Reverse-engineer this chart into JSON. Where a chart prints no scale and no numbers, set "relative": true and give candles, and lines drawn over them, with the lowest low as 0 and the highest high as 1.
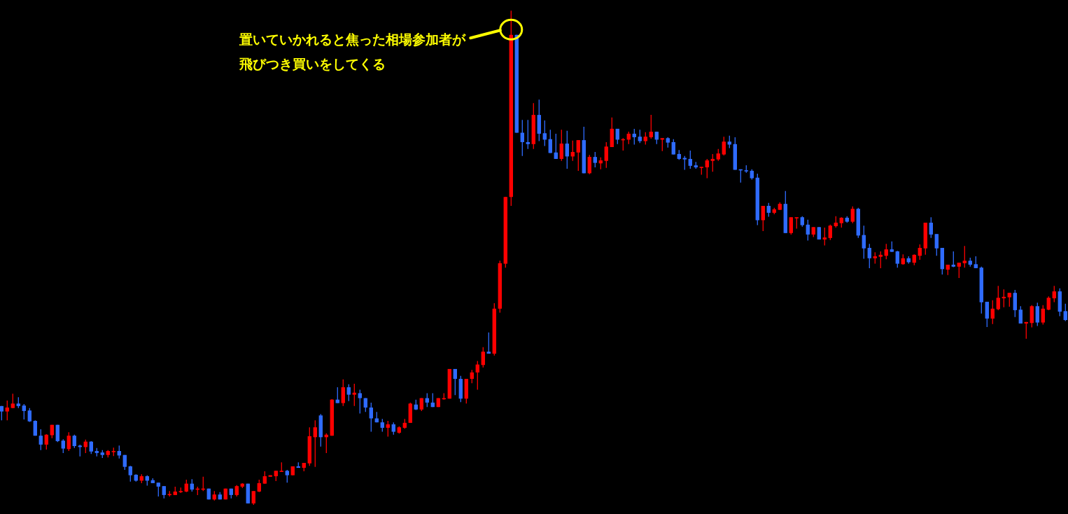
{
  "chart_data": {
    "type": "candlestick",
    "relative": true,
    "categories": [
      null,
      null,
      null,
      null,
      null,
      null,
      null,
      null,
      null,
      null,
      null,
      null,
      null,
      null,
      null,
      null,
      null,
      null,
      null,
      null,
      null,
      null,
      null,
      null,
      null,
      null,
      null,
      null,
      null,
      null,
      null,
      null,
      null,
      null,
      null,
      null,
      null,
      null,
      null,
      null,
      null,
      null,
      null,
      null,
      null,
      null,
      null,
      null,
      null,
      null,
      null,
      null,
      null,
      null,
      null,
      null,
      null,
      null,
      null,
      null,
      null,
      null,
      null,
      null,
      null,
      null,
      null,
      null,
      null,
      null,
      null,
      null,
      null,
      null,
      null,
      null,
      null,
      null,
      null,
      null,
      null,
      null,
      null,
      null,
      null,
      null,
      null,
      null,
      null,
      null,
      null,
      null,
      null,
      null,
      null,
      null,
      null,
      null,
      null,
      null,
      null,
      null,
      null,
      null,
      null,
      null,
      null,
      null,
      null,
      null,
      null,
      null,
      null,
      null,
      null,
      null,
      null,
      null,
      null,
      null,
      null,
      null,
      null,
      null,
      null,
      null,
      null,
      null,
      null,
      null,
      null,
      null,
      null,
      null,
      null,
      null,
      null,
      null,
      null,
      null,
      null,
      null,
      null,
      null,
      null,
      null,
      null,
      null,
      null,
      null,
      null,
      null,
      null,
      null,
      null,
      null,
      null,
      null,
      null,
      null,
      null,
      null,
      null,
      null,
      null,
      null,
      null,
      null,
      null,
      null,
      null,
      null,
      null,
      null,
      null,
      null,
      null,
      null,
      null,
      null,
      null,
      null,
      null,
      null,
      null,
      null,
      null,
      null,
      null,
      null,
      null
    ],
    "ohlc": [
      [
        0.2,
        0.2,
        0.171,
        0.189
      ],
      [
        0.189,
        0.211,
        0.171,
        0.197
      ],
      [
        0.196,
        0.225,
        0.196,
        0.205
      ],
      [
        0.205,
        0.218,
        0.196,
        0.2
      ],
      [
        0.201,
        0.204,
        0.173,
        0.19
      ],
      [
        0.191,
        0.196,
        0.168,
        0.169
      ],
      [
        0.17,
        0.171,
        0.14,
        0.14
      ],
      [
        0.14,
        0.153,
        0.111,
        0.122
      ],
      [
        0.122,
        0.143,
        0.112,
        0.142
      ],
      [
        0.141,
        0.162,
        0.135,
        0.162
      ],
      [
        0.162,
        0.162,
        0.127,
        0.129
      ],
      [
        0.13,
        0.133,
        0.105,
        0.114
      ],
      [
        0.113,
        0.147,
        0.109,
        0.14
      ],
      [
        0.14,
        0.142,
        0.115,
        0.119
      ],
      [
        0.12,
        0.122,
        0.098,
        0.117
      ],
      [
        0.117,
        0.132,
        0.105,
        0.128
      ],
      [
        0.128,
        0.129,
        0.103,
        0.108
      ],
      [
        0.109,
        0.115,
        0.098,
        0.105
      ],
      [
        0.106,
        0.111,
        0.095,
        0.101
      ],
      [
        0.101,
        0.111,
        0.096,
        0.109
      ],
      [
        0.108,
        0.116,
        0.099,
        0.109
      ],
      [
        0.109,
        0.12,
        0.094,
        0.1
      ],
      [
        0.101,
        0.101,
        0.071,
        0.077
      ],
      [
        0.078,
        0.079,
        0.047,
        0.06
      ],
      [
        0.061,
        0.062,
        0.047,
        0.049
      ],
      [
        0.049,
        0.062,
        0.044,
        0.058
      ],
      [
        0.058,
        0.06,
        0.039,
        0.049
      ],
      [
        0.05,
        0.054,
        0.044,
        0.044
      ],
      [
        0.045,
        0.045,
        0.017,
        0.037
      ],
      [
        0.038,
        0.038,
        0.013,
        0.02
      ],
      [
        0.02,
        0.028,
        0.017,
        0.022
      ],
      [
        0.02,
        0.037,
        0.02,
        0.027
      ],
      [
        0.026,
        0.035,
        0.024,
        0.028
      ],
      [
        0.027,
        0.051,
        0.026,
        0.043
      ],
      [
        0.043,
        0.052,
        0.027,
        0.031
      ],
      [
        0.031,
        0.037,
        0.02,
        0.033
      ],
      [
        0.031,
        0.057,
        0.028,
        0.033
      ],
      [
        0.033,
        0.033,
        0.011,
        0.011
      ],
      [
        0.011,
        0.028,
        0.009,
        0.021
      ],
      [
        0.021,
        0.026,
        0.011,
        0.011
      ],
      [
        0.011,
        0.033,
        0.011,
        0.033
      ],
      [
        0.033,
        0.033,
        0.013,
        0.02
      ],
      [
        0.02,
        0.04,
        0.017,
        0.038
      ],
      [
        0.037,
        0.044,
        0.034,
        0.043
      ],
      [
        0.043,
        0.043,
        0.003,
        0.003
      ],
      [
        0.003,
        0.028,
        0,
        0.028
      ],
      [
        0.027,
        0.051,
        0.026,
        0.044
      ],
      [
        0.043,
        0.068,
        0.043,
        0.058
      ],
      [
        0.057,
        0.06,
        0.057,
        0.06
      ],
      [
        0.058,
        0.069,
        0.048,
        0.069
      ],
      [
        0.068,
        0.086,
        0.067,
        0.069
      ],
      [
        0.069,
        0.071,
        0.045,
        0.06
      ],
      [
        0.06,
        0.078,
        0.06,
        0.078
      ],
      [
        0.078,
        0.086,
        0.075,
        0.075
      ],
      [
        0.075,
        0.085,
        0.068,
        0.085
      ],
      [
        0.084,
        0.157,
        0.079,
        0.139
      ],
      [
        0.137,
        0.171,
        0.077,
        0.157
      ],
      [
        0.181,
        0.184,
        0.118,
        0.137
      ],
      [
        0.137,
        0.145,
        0.105,
        0.142
      ],
      [
        0.14,
        0.214,
        0.14,
        0.213
      ],
      [
        0.213,
        0.238,
        0.206,
        0.206
      ],
      [
        0.206,
        0.254,
        0.2,
        0.238
      ],
      [
        0.238,
        0.244,
        0.21,
        0.223
      ],
      [
        0.223,
        0.245,
        0.2,
        0.227
      ],
      [
        0.226,
        0.233,
        0.185,
        0.216
      ],
      [
        0.216,
        0.216,
        0.188,
        0.197
      ],
      [
        0.197,
        0.207,
        0.148,
        0.175
      ],
      [
        0.175,
        0.188,
        0.167,
        0.167
      ],
      [
        0.167,
        0.174,
        0.148,
        0.156
      ],
      [
        0.156,
        0.17,
        0.138,
        0.163
      ],
      [
        0.163,
        0.167,
        0.142,
        0.148
      ],
      [
        0.146,
        0.159,
        0.144,
        0.157
      ],
      [
        0.156,
        0.174,
        0.154,
        0.166
      ],
      [
        0.166,
        0.207,
        0.166,
        0.205
      ],
      [
        0.203,
        0.213,
        0.192,
        0.193
      ],
      [
        0.193,
        0.216,
        0.19,
        0.216
      ],
      [
        0.216,
        0.226,
        0.198,
        0.207
      ],
      [
        0.207,
        0.226,
        0.198,
        0.198
      ],
      [
        0.198,
        0.216,
        0.198,
        0.216
      ],
      [
        0.214,
        0.226,
        0.213,
        0.216
      ],
      [
        0.215,
        0.275,
        0.215,
        0.275
      ],
      [
        0.275,
        0.275,
        0.222,
        0.255
      ],
      [
        0.255,
        0.261,
        0.208,
        0.215
      ],
      [
        0.215,
        0.255,
        0.205,
        0.255
      ],
      [
        0.255,
        0.273,
        0.246,
        0.268
      ],
      [
        0.268,
        0.291,
        0.233,
        0.284
      ],
      [
        0.283,
        0.319,
        0.278,
        0.31
      ],
      [
        0.31,
        0.349,
        0.306,
        0.306
      ],
      [
        0.306,
        0.408,
        0.302,
        0.397
      ],
      [
        0.397,
        0.494,
        0.389,
        0.489
      ],
      [
        0.488,
        0.623,
        0.48,
        0.623
      ],
      [
        0.623,
        1,
        0.605,
        0.951
      ],
      [
        0.951,
        0.951,
        0.753,
        0.753
      ],
      [
        0.753,
        0.779,
        0.706,
        0.734
      ],
      [
        0.734,
        0.779,
        0.72,
        0.73
      ],
      [
        0.73,
        0.813,
        0.72,
        0.789
      ],
      [
        0.789,
        0.82,
        0.736,
        0.751
      ],
      [
        0.752,
        0.778,
        0.726,
        0.739
      ],
      [
        0.74,
        0.759,
        0.712,
        0.712
      ],
      [
        0.713,
        0.751,
        0.7,
        0.7
      ],
      [
        0.7,
        0.759,
        0.696,
        0.731
      ],
      [
        0.731,
        0.757,
        0.68,
        0.705
      ],
      [
        0.705,
        0.737,
        0.696,
        0.714
      ],
      [
        0.713,
        0.738,
        0.676,
        0.738
      ],
      [
        0.738,
        0.765,
        0.671,
        0.671
      ],
      [
        0.671,
        0.708,
        0.669,
        0.704
      ],
      [
        0.704,
        0.714,
        0.683,
        0.692
      ],
      [
        0.691,
        0.703,
        0.679,
        0.697
      ],
      [
        0.696,
        0.734,
        0.682,
        0.725
      ],
      [
        0.724,
        0.784,
        0.724,
        0.761
      ],
      [
        0.761,
        0.761,
        0.73,
        0.739
      ],
      [
        0.739,
        0.742,
        0.717,
        0.74
      ],
      [
        0.739,
        0.755,
        0.73,
        0.751
      ],
      [
        0.751,
        0.761,
        0.729,
        0.744
      ],
      [
        0.745,
        0.759,
        0.732,
        0.736
      ],
      [
        0.736,
        0.754,
        0.729,
        0.745
      ],
      [
        0.744,
        0.789,
        0.741,
        0.755
      ],
      [
        0.755,
        0.755,
        0.73,
        0.739
      ],
      [
        0.739,
        0.742,
        0.716,
        0.742
      ],
      [
        0.742,
        0.744,
        0.723,
        0.733
      ],
      [
        0.734,
        0.74,
        0.709,
        0.709
      ],
      [
        0.71,
        0.718,
        0.698,
        0.7
      ],
      [
        0.702,
        0.706,
        0.678,
        0.699
      ],
      [
        0.7,
        0.717,
        0.68,
        0.686
      ],
      [
        0.687,
        0.694,
        0.68,
        0.683
      ],
      [
        0.683,
        0.684,
        0.668,
        0.684
      ],
      [
        0.683,
        0.7,
        0.661,
        0.697
      ],
      [
        0.696,
        0.71,
        0.674,
        0.7
      ],
      [
        0.699,
        0.72,
        0.696,
        0.711
      ],
      [
        0.709,
        0.745,
        0.707,
        0.735
      ],
      [
        0.735,
        0.747,
        0.722,
        0.729
      ],
      [
        0.73,
        0.744,
        0.678,
        0.678
      ],
      [
        0.679,
        0.679,
        0.652,
        0.677
      ],
      [
        0.677,
        0.687,
        0.672,
        0.675
      ],
      [
        0.676,
        0.679,
        0.658,
        0.661
      ],
      [
        0.662,
        0.67,
        0.566,
        0.576
      ],
      [
        0.576,
        0.605,
        0.554,
        0.605
      ],
      [
        0.605,
        0.611,
        0.583,
        0.591
      ],
      [
        0.591,
        0.601,
        0.588,
        0.598
      ],
      [
        0.597,
        0.612,
        0.597,
        0.609
      ],
      [
        0.609,
        0.635,
        0.55,
        0.55
      ],
      [
        0.55,
        0.582,
        0.547,
        0.582
      ],
      [
        0.581,
        0.582,
        0.559,
        0.582
      ],
      [
        0.582,
        0.584,
        0.563,
        0.566
      ],
      [
        0.567,
        0.577,
        0.535,
        0.547
      ],
      [
        0.547,
        0.562,
        0.542,
        0.562
      ],
      [
        0.562,
        0.562,
        0.537,
        0.537
      ],
      [
        0.537,
        0.561,
        0.525,
        0.541
      ],
      [
        0.54,
        0.567,
        0.536,
        0.565
      ],
      [
        0.564,
        0.584,
        0.561,
        0.571
      ],
      [
        0.57,
        0.582,
        0.561,
        0.581
      ],
      [
        0.581,
        0.584,
        0.571,
        0.573
      ],
      [
        0.573,
        0.604,
        0.57,
        0.599
      ],
      [
        0.599,
        0.601,
        0.54,
        0.545
      ],
      [
        0.546,
        0.565,
        0.498,
        0.519
      ],
      [
        0.52,
        0.528,
        0.479,
        0.499
      ],
      [
        0.499,
        0.511,
        0.488,
        0.503
      ],
      [
        0.502,
        0.513,
        0.479,
        0.506
      ],
      [
        0.504,
        0.528,
        0.497,
        0.517
      ],
      [
        0.517,
        0.533,
        0.512,
        0.512
      ],
      [
        0.513,
        0.514,
        0.48,
        0.488
      ],
      [
        0.487,
        0.507,
        0.486,
        0.499
      ],
      [
        0.499,
        0.503,
        0.488,
        0.491
      ],
      [
        0.49,
        0.507,
        0.485,
        0.506
      ],
      [
        0.504,
        0.527,
        0.496,
        0.52
      ],
      [
        0.519,
        0.571,
        0.506,
        0.571
      ],
      [
        0.571,
        0.582,
        0.54,
        0.547
      ],
      [
        0.548,
        0.548,
        0.504,
        0.519
      ],
      [
        0.52,
        0.52,
        0.466,
        0.477
      ],
      [
        0.476,
        0.486,
        0.465,
        0.486
      ],
      [
        0.486,
        0.513,
        0.481,
        0.482
      ],
      [
        0.482,
        0.49,
        0.459,
        0.49
      ],
      [
        0.489,
        0.524,
        0.48,
        0.494
      ],
      [
        0.494,
        0.5,
        0.482,
        0.486
      ],
      [
        0.487,
        0.503,
        0.479,
        0.479
      ],
      [
        0.48,
        0.482,
        0.387,
        0.41
      ],
      [
        0.411,
        0.411,
        0.36,
        0.377
      ],
      [
        0.377,
        0.414,
        0.366,
        0.397
      ],
      [
        0.396,
        0.443,
        0.394,
        0.419
      ],
      [
        0.418,
        0.436,
        0.4,
        0.421
      ],
      [
        0.42,
        0.429,
        0.401,
        0.429
      ],
      [
        0.429,
        0.435,
        0.38,
        0.394
      ],
      [
        0.395,
        0.402,
        0.367,
        0.367
      ],
      [
        0.367,
        0.37,
        0.336,
        0.37
      ],
      [
        0.368,
        0.404,
        0.359,
        0.402
      ],
      [
        0.402,
        0.409,
        0.362,
        0.369
      ],
      [
        0.369,
        0.404,
        0.365,
        0.397
      ],
      [
        0.395,
        0.422,
        0.394,
        0.419
      ],
      [
        0.418,
        0.443,
        0.41,
        0.432
      ],
      [
        0.432,
        0.438,
        0.382,
        0.391
      ],
      [
        0.392,
        0.407,
        0.372,
        0.374
      ]
    ],
    "colors": [
      "#2f6bff",
      "#ff0000",
      "#ff0000",
      "#2f6bff",
      "#2f6bff",
      "#2f6bff",
      "#2f6bff",
      "#2f6bff",
      "#ff0000",
      "#ff0000",
      "#2f6bff",
      "#2f6bff",
      "#ff0000",
      "#2f6bff",
      "#2f6bff",
      "#ff0000",
      "#2f6bff",
      "#2f6bff",
      "#2f6bff",
      "#ff0000",
      "#ff0000",
      "#2f6bff",
      "#2f6bff",
      "#2f6bff",
      "#2f6bff",
      "#ff0000",
      "#2f6bff",
      "#2f6bff",
      "#2f6bff",
      "#2f6bff",
      "#ff0000",
      "#ff0000",
      "#ff0000",
      "#ff0000",
      "#2f6bff",
      "#ff0000",
      "#ff0000",
      "#2f6bff",
      "#ff0000",
      "#2f6bff",
      "#ff0000",
      "#2f6bff",
      "#ff0000",
      "#ff0000",
      "#2f6bff",
      "#ff0000",
      "#ff0000",
      "#ff0000",
      "#ff0000",
      "#ff0000",
      "#ff0000",
      "#2f6bff",
      "#ff0000",
      "#2f6bff",
      "#ff0000",
      "#ff0000",
      "#ff0000",
      "#2f6bff",
      "#ff0000",
      "#ff0000",
      "#2f6bff",
      "#ff0000",
      "#2f6bff",
      "#ff0000",
      "#2f6bff",
      "#2f6bff",
      "#2f6bff",
      "#2f6bff",
      "#2f6bff",
      "#ff0000",
      "#2f6bff",
      "#ff0000",
      "#ff0000",
      "#ff0000",
      "#2f6bff",
      "#ff0000",
      "#2f6bff",
      "#2f6bff",
      "#ff0000",
      "#ff0000",
      "#ff0000",
      "#2f6bff",
      "#2f6bff",
      "#ff0000",
      "#ff0000",
      "#ff0000",
      "#ff0000",
      "#2f6bff",
      "#ff0000",
      "#ff0000",
      "#ff0000",
      "#ff0000",
      "#2f6bff",
      "#2f6bff",
      "#2f6bff",
      "#ff0000",
      "#2f6bff",
      "#2f6bff",
      "#2f6bff",
      "#2f6bff",
      "#ff0000",
      "#2f6bff",
      "#ff0000",
      "#ff0000",
      "#2f6bff",
      "#ff0000",
      "#2f6bff",
      "#ff0000",
      "#ff0000",
      "#ff0000",
      "#2f6bff",
      "#ff0000",
      "#ff0000",
      "#2f6bff",
      "#2f6bff",
      "#ff0000",
      "#ff0000",
      "#2f6bff",
      "#ff0000",
      "#2f6bff",
      "#2f6bff",
      "#2f6bff",
      "#2f6bff",
      "#2f6bff",
      "#2f6bff",
      "#ff0000",
      "#ff0000",
      "#ff0000",
      "#ff0000",
      "#ff0000",
      "#2f6bff",
      "#2f6bff",
      "#2f6bff",
      "#2f6bff",
      "#2f6bff",
      "#2f6bff",
      "#ff0000",
      "#2f6bff",
      "#ff0000",
      "#ff0000",
      "#2f6bff",
      "#ff0000",
      "#ff0000",
      "#2f6bff",
      "#2f6bff",
      "#ff0000",
      "#2f6bff",
      "#ff0000",
      "#ff0000",
      "#ff0000",
      "#ff0000",
      "#2f6bff",
      "#ff0000",
      "#2f6bff",
      "#2f6bff",
      "#2f6bff",
      "#ff0000",
      "#ff0000",
      "#ff0000",
      "#2f6bff",
      "#2f6bff",
      "#ff0000",
      "#2f6bff",
      "#ff0000",
      "#ff0000",
      "#ff0000",
      "#2f6bff",
      "#2f6bff",
      "#2f6bff",
      "#ff0000",
      "#2f6bff",
      "#ff0000",
      "#ff0000",
      "#2f6bff",
      "#2f6bff",
      "#2f6bff",
      "#2f6bff",
      "#ff0000",
      "#ff0000",
      "#ff0000",
      "#ff0000",
      "#2f6bff",
      "#2f6bff",
      "#ff0000",
      "#ff0000",
      "#2f6bff",
      "#ff0000",
      "#ff0000",
      "#ff0000",
      "#2f6bff",
      "#2f6bff"
    ],
    "annotations": [
      "置いていかれると焦った相場参加者が飛びつき買いをしてくる"
    ]
  }
}
